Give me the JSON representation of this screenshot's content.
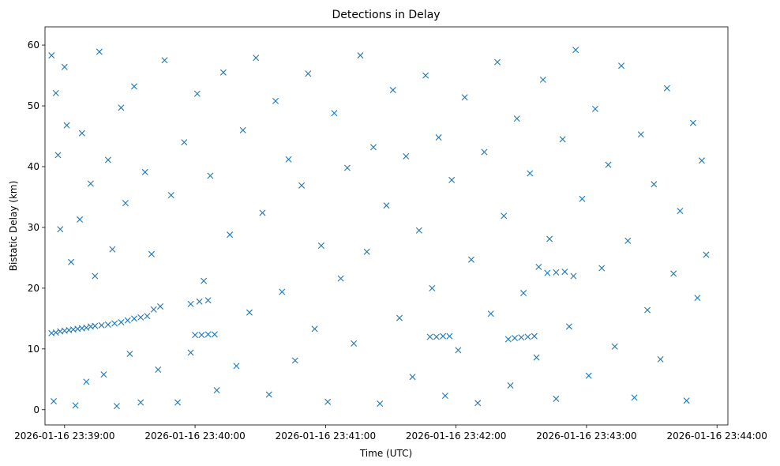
{
  "chart_data": {
    "type": "scatter",
    "title": "Detections in Delay",
    "xlabel": "Time (UTC)",
    "ylabel": "Bistatic Delay (km)",
    "marker": "x",
    "color": "#1f77b4",
    "grid": false,
    "legend": "none",
    "xlim": [
      "2026-01-16 23:38:51",
      "2026-01-16 23:44:05"
    ],
    "ylim": [
      -2.5,
      63
    ],
    "x_ticks": [
      "2026-01-16 23:39:00",
      "2026-01-16 23:40:00",
      "2026-01-16 23:41:00",
      "2026-01-16 23:42:00",
      "2026-01-16 23:43:00",
      "2026-01-16 23:44:00"
    ],
    "y_ticks": [
      0,
      10,
      20,
      30,
      40,
      50,
      60
    ],
    "series": [
      {
        "values_note_x_range": [
          "2026-01-16 23:38:53",
          "2026-01-16 23:43:55"
        ],
        "points": [
          [
            "2026-01-16 23:38:54",
            12.6
          ],
          [
            "2026-01-16 23:38:56",
            12.7
          ],
          [
            "2026-01-16 23:38:58",
            12.9
          ],
          [
            "2026-01-16 23:39:00",
            13.0
          ],
          [
            "2026-01-16 23:39:02",
            13.1
          ],
          [
            "2026-01-16 23:39:04",
            13.2
          ],
          [
            "2026-01-16 23:39:06",
            13.3
          ],
          [
            "2026-01-16 23:39:08",
            13.4
          ],
          [
            "2026-01-16 23:39:10",
            13.5
          ],
          [
            "2026-01-16 23:39:12",
            13.7
          ],
          [
            "2026-01-16 23:39:14",
            13.8
          ],
          [
            "2026-01-16 23:39:17",
            13.9
          ],
          [
            "2026-01-16 23:39:20",
            14.0
          ],
          [
            "2026-01-16 23:39:23",
            14.2
          ],
          [
            "2026-01-16 23:39:26",
            14.4
          ],
          [
            "2026-01-16 23:39:29",
            14.7
          ],
          [
            "2026-01-16 23:39:32",
            15.0
          ],
          [
            "2026-01-16 23:39:35",
            15.2
          ],
          [
            "2026-01-16 23:39:38",
            15.4
          ],
          [
            "2026-01-16 23:39:41",
            16.5
          ],
          [
            "2026-01-16 23:39:44",
            17.0
          ],
          [
            "2026-01-16 23:39:58",
            17.4
          ],
          [
            "2026-01-16 23:40:02",
            17.8
          ],
          [
            "2026-01-16 23:40:06",
            18.0
          ],
          [
            "2026-01-16 23:40:00",
            12.3
          ],
          [
            "2026-01-16 23:40:03",
            12.3
          ],
          [
            "2026-01-16 23:40:06",
            12.4
          ],
          [
            "2026-01-16 23:40:09",
            12.4
          ],
          [
            "2026-01-16 23:41:48",
            12.0
          ],
          [
            "2026-01-16 23:41:51",
            12.0
          ],
          [
            "2026-01-16 23:41:54",
            12.1
          ],
          [
            "2026-01-16 23:41:57",
            12.1
          ],
          [
            "2026-01-16 23:42:24",
            11.6
          ],
          [
            "2026-01-16 23:42:27",
            11.8
          ],
          [
            "2026-01-16 23:42:30",
            11.9
          ],
          [
            "2026-01-16 23:42:33",
            12.0
          ],
          [
            "2026-01-16 23:42:36",
            12.1
          ],
          [
            "2026-01-16 23:42:38",
            23.5
          ],
          [
            "2026-01-16 23:42:42",
            22.5
          ],
          [
            "2026-01-16 23:42:46",
            22.6
          ],
          [
            "2026-01-16 23:42:50",
            22.7
          ],
          [
            "2026-01-16 23:42:54",
            22.0
          ],
          [
            "2026-01-16 23:38:54",
            58.3
          ],
          [
            "2026-01-16 23:38:56",
            52.1
          ],
          [
            "2026-01-16 23:38:55",
            1.4
          ],
          [
            "2026-01-16 23:38:57",
            41.9
          ],
          [
            "2026-01-16 23:38:58",
            29.7
          ],
          [
            "2026-01-16 23:39:00",
            56.4
          ],
          [
            "2026-01-16 23:39:01",
            46.8
          ],
          [
            "2026-01-16 23:39:03",
            24.3
          ],
          [
            "2026-01-16 23:39:05",
            0.7
          ],
          [
            "2026-01-16 23:39:07",
            31.3
          ],
          [
            "2026-01-16 23:39:08",
            45.5
          ],
          [
            "2026-01-16 23:39:10",
            4.6
          ],
          [
            "2026-01-16 23:39:12",
            37.2
          ],
          [
            "2026-01-16 23:39:14",
            22.0
          ],
          [
            "2026-01-16 23:39:16",
            58.9
          ],
          [
            "2026-01-16 23:39:18",
            5.8
          ],
          [
            "2026-01-16 23:39:20",
            41.1
          ],
          [
            "2026-01-16 23:39:22",
            26.4
          ],
          [
            "2026-01-16 23:39:24",
            0.6
          ],
          [
            "2026-01-16 23:39:26",
            49.7
          ],
          [
            "2026-01-16 23:39:28",
            34.0
          ],
          [
            "2026-01-16 23:39:30",
            9.2
          ],
          [
            "2026-01-16 23:39:32",
            53.2
          ],
          [
            "2026-01-16 23:39:35",
            1.2
          ],
          [
            "2026-01-16 23:39:37",
            39.1
          ],
          [
            "2026-01-16 23:39:40",
            25.6
          ],
          [
            "2026-01-16 23:39:43",
            6.6
          ],
          [
            "2026-01-16 23:39:46",
            57.5
          ],
          [
            "2026-01-16 23:39:49",
            35.3
          ],
          [
            "2026-01-16 23:39:52",
            1.2
          ],
          [
            "2026-01-16 23:39:55",
            44.0
          ],
          [
            "2026-01-16 23:39:58",
            9.4
          ],
          [
            "2026-01-16 23:40:01",
            52.0
          ],
          [
            "2026-01-16 23:40:04",
            21.2
          ],
          [
            "2026-01-16 23:40:07",
            38.5
          ],
          [
            "2026-01-16 23:40:10",
            3.2
          ],
          [
            "2026-01-16 23:40:13",
            55.5
          ],
          [
            "2026-01-16 23:40:16",
            28.8
          ],
          [
            "2026-01-16 23:40:19",
            7.2
          ],
          [
            "2026-01-16 23:40:22",
            46.0
          ],
          [
            "2026-01-16 23:40:25",
            16.0
          ],
          [
            "2026-01-16 23:40:28",
            57.9
          ],
          [
            "2026-01-16 23:40:31",
            32.4
          ],
          [
            "2026-01-16 23:40:34",
            2.5
          ],
          [
            "2026-01-16 23:40:37",
            50.8
          ],
          [
            "2026-01-16 23:40:40",
            19.4
          ],
          [
            "2026-01-16 23:40:43",
            41.2
          ],
          [
            "2026-01-16 23:40:46",
            8.1
          ],
          [
            "2026-01-16 23:40:49",
            36.9
          ],
          [
            "2026-01-16 23:40:52",
            55.3
          ],
          [
            "2026-01-16 23:40:55",
            13.3
          ],
          [
            "2026-01-16 23:40:58",
            27.0
          ],
          [
            "2026-01-16 23:41:01",
            1.3
          ],
          [
            "2026-01-16 23:41:04",
            48.8
          ],
          [
            "2026-01-16 23:41:07",
            21.6
          ],
          [
            "2026-01-16 23:41:10",
            39.8
          ],
          [
            "2026-01-16 23:41:13",
            10.9
          ],
          [
            "2026-01-16 23:41:16",
            58.3
          ],
          [
            "2026-01-16 23:41:19",
            26.0
          ],
          [
            "2026-01-16 23:41:22",
            43.2
          ],
          [
            "2026-01-16 23:41:25",
            1.0
          ],
          [
            "2026-01-16 23:41:28",
            33.6
          ],
          [
            "2026-01-16 23:41:31",
            52.6
          ],
          [
            "2026-01-16 23:41:34",
            15.1
          ],
          [
            "2026-01-16 23:41:37",
            41.7
          ],
          [
            "2026-01-16 23:41:40",
            5.4
          ],
          [
            "2026-01-16 23:41:43",
            29.5
          ],
          [
            "2026-01-16 23:41:46",
            55.0
          ],
          [
            "2026-01-16 23:41:49",
            20.0
          ],
          [
            "2026-01-16 23:41:52",
            44.8
          ],
          [
            "2026-01-16 23:41:55",
            2.3
          ],
          [
            "2026-01-16 23:41:58",
            37.8
          ],
          [
            "2026-01-16 23:42:01",
            9.8
          ],
          [
            "2026-01-16 23:42:04",
            51.4
          ],
          [
            "2026-01-16 23:42:07",
            24.7
          ],
          [
            "2026-01-16 23:42:10",
            1.1
          ],
          [
            "2026-01-16 23:42:13",
            42.4
          ],
          [
            "2026-01-16 23:42:16",
            15.8
          ],
          [
            "2026-01-16 23:42:19",
            57.2
          ],
          [
            "2026-01-16 23:42:22",
            31.9
          ],
          [
            "2026-01-16 23:42:25",
            4.0
          ],
          [
            "2026-01-16 23:42:28",
            47.9
          ],
          [
            "2026-01-16 23:42:31",
            19.2
          ],
          [
            "2026-01-16 23:42:34",
            38.9
          ],
          [
            "2026-01-16 23:42:37",
            8.6
          ],
          [
            "2026-01-16 23:42:40",
            54.3
          ],
          [
            "2026-01-16 23:42:43",
            28.1
          ],
          [
            "2026-01-16 23:42:46",
            1.8
          ],
          [
            "2026-01-16 23:42:49",
            44.5
          ],
          [
            "2026-01-16 23:42:52",
            13.7
          ],
          [
            "2026-01-16 23:42:55",
            59.2
          ],
          [
            "2026-01-16 23:42:58",
            34.7
          ],
          [
            "2026-01-16 23:43:01",
            5.6
          ],
          [
            "2026-01-16 23:43:04",
            49.5
          ],
          [
            "2026-01-16 23:43:07",
            23.3
          ],
          [
            "2026-01-16 23:43:10",
            40.3
          ],
          [
            "2026-01-16 23:43:13",
            10.4
          ],
          [
            "2026-01-16 23:43:16",
            56.6
          ],
          [
            "2026-01-16 23:43:19",
            27.8
          ],
          [
            "2026-01-16 23:43:22",
            2.0
          ],
          [
            "2026-01-16 23:43:25",
            45.3
          ],
          [
            "2026-01-16 23:43:28",
            16.4
          ],
          [
            "2026-01-16 23:43:31",
            37.1
          ],
          [
            "2026-01-16 23:43:34",
            8.3
          ],
          [
            "2026-01-16 23:43:37",
            52.9
          ],
          [
            "2026-01-16 23:43:40",
            22.4
          ],
          [
            "2026-01-16 23:43:43",
            32.7
          ],
          [
            "2026-01-16 23:43:46",
            1.5
          ],
          [
            "2026-01-16 23:43:49",
            47.2
          ],
          [
            "2026-01-16 23:43:51",
            18.4
          ],
          [
            "2026-01-16 23:43:53",
            41.0
          ],
          [
            "2026-01-16 23:43:55",
            25.5
          ]
        ]
      }
    ]
  }
}
